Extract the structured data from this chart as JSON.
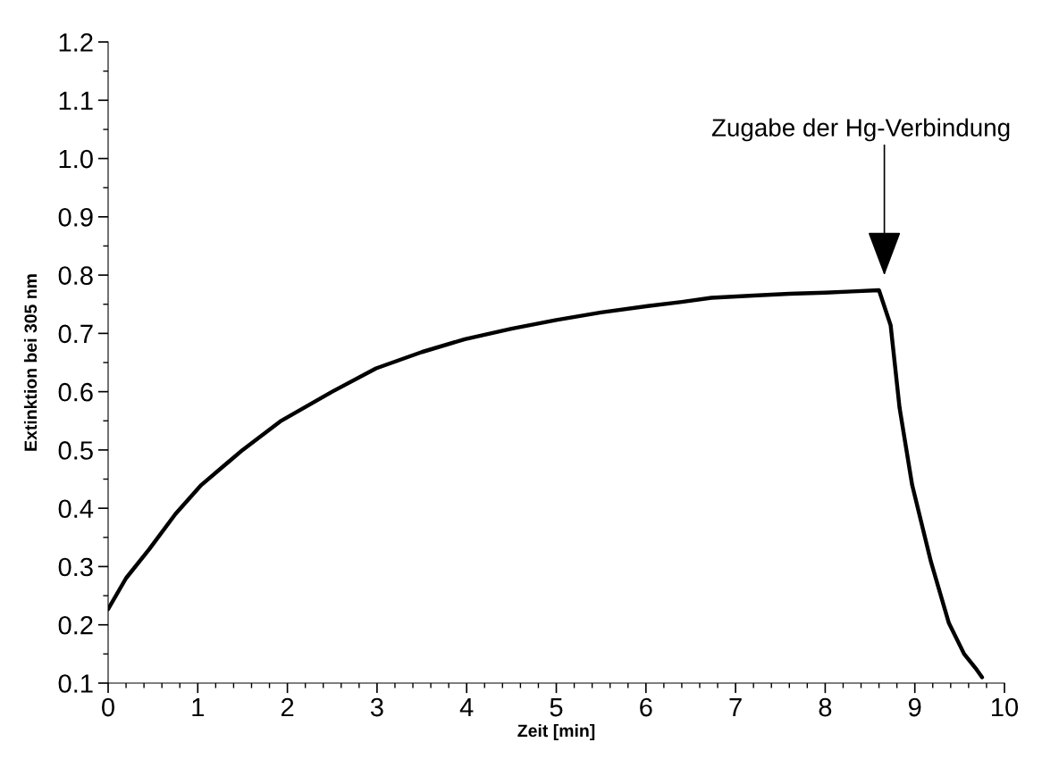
{
  "chart_data": {
    "type": "line",
    "xlabel": "Zeit [min]",
    "ylabel": "Extinktion bei 305 nm",
    "xlim": [
      0,
      10
    ],
    "ylim": [
      0.1,
      1.2
    ],
    "xticks": [
      0,
      1,
      2,
      3,
      4,
      5,
      6,
      7,
      8,
      9,
      10
    ],
    "yticks": [
      {
        "value": 0.1,
        "label": "0.1"
      },
      {
        "value": 0.2,
        "label": "0.2"
      },
      {
        "value": 0.3,
        "label": "0.3"
      },
      {
        "value": 0.4,
        "label": "0.4"
      },
      {
        "value": 0.5,
        "label": "0.5"
      },
      {
        "value": 0.6,
        "label": "0.6"
      },
      {
        "value": 0.7,
        "label": "0.7"
      },
      {
        "value": 0.8,
        "label": "0.8"
      },
      {
        "value": 0.9,
        "label": "0.9"
      },
      {
        "value": 1.0,
        "label": "1.0"
      },
      {
        "value": 1.1,
        "label": "1.1"
      },
      {
        "value": 1.2,
        "label": "1.2"
      }
    ],
    "grid": false,
    "marker": "none",
    "line_style": "solid",
    "series": [
      {
        "color": "#000000",
        "x": [
          0,
          0.2,
          0.46,
          0.75,
          1.04,
          1.5,
          1.92,
          2.5,
          2.99,
          3.5,
          3.98,
          4.5,
          5.0,
          5.5,
          6.02,
          6.4,
          6.73,
          7.2,
          7.6,
          8.0,
          8.3,
          8.6,
          8.73,
          8.83,
          8.97,
          9.18,
          9.38,
          9.55,
          9.69,
          9.75
        ],
        "values": [
          0.227,
          0.28,
          0.33,
          0.39,
          0.44,
          0.5,
          0.549,
          0.6,
          0.64,
          0.668,
          0.69,
          0.708,
          0.723,
          0.736,
          0.747,
          0.754,
          0.761,
          0.765,
          0.768,
          0.77,
          0.772,
          0.774,
          0.714,
          0.572,
          0.44,
          0.308,
          0.203,
          0.15,
          0.123,
          0.11
        ]
      }
    ],
    "annotations": [
      "Zugabe der Hg-Verbindung"
    ]
  }
}
